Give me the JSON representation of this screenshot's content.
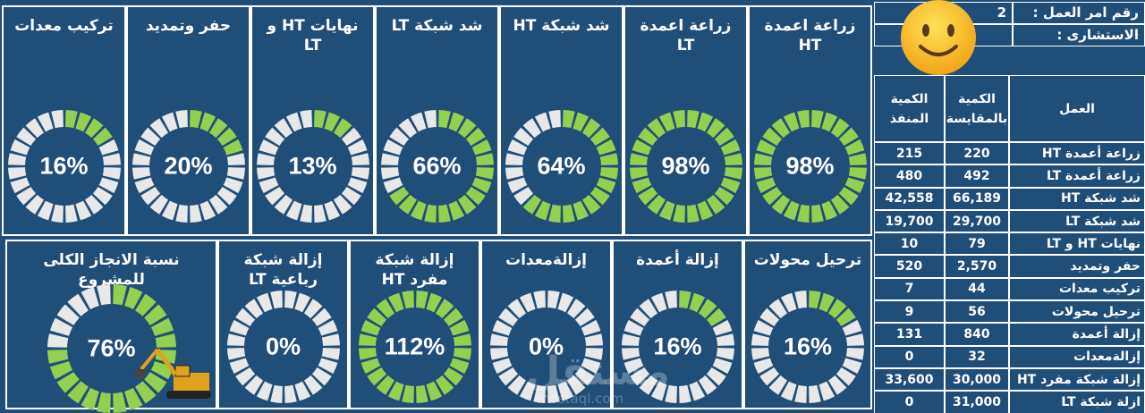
{
  "dashboard": {
    "top_tiles": [
      {
        "title": "زراعة اعمدة HT",
        "percent": 98,
        "pct_label": "98%"
      },
      {
        "title": "زراعة اعمدة LT",
        "percent": 98,
        "pct_label": "98%"
      },
      {
        "title": "شد شبكة HT",
        "percent": 64,
        "pct_label": "64%"
      },
      {
        "title": "شد شبكة LT",
        "percent": 66,
        "pct_label": "66%"
      },
      {
        "title": "نهايات HT و LT",
        "percent": 13,
        "pct_label": "13%"
      },
      {
        "title": "حفر وتمديد",
        "percent": 20,
        "pct_label": "20%"
      },
      {
        "title": "تركيب معدات",
        "percent": 16,
        "pct_label": "16%"
      }
    ],
    "bottom_tiles": [
      {
        "title": "ترحيل محولات",
        "percent": 16,
        "pct_label": "16%"
      },
      {
        "title": "إزالة أعمدة",
        "percent": 16,
        "pct_label": "16%"
      },
      {
        "title": "إزالةمعدات",
        "percent": 0,
        "pct_label": "0%"
      },
      {
        "title": "إزالة شبكة مفرد HT",
        "percent": 100,
        "pct_label": "112%"
      },
      {
        "title": "إزالة شبكة رباعية LT",
        "percent": 0,
        "pct_label": "0%"
      },
      {
        "title": "نسبة الانجاز الكلى للمشروع",
        "percent": 76,
        "pct_label": "76%"
      }
    ],
    "colors": {
      "navy": "#1f4e79",
      "done": "#92d050",
      "remaining": "#e8e8e8",
      "border": "#ffffff"
    },
    "decoration": {
      "overall_icon": "excavator-icon",
      "header_icon": "smiley-icon"
    },
    "watermark": {
      "main": "مستقل",
      "sub": "mostaql.com"
    }
  },
  "header": {
    "work_order_label": "رقم امر العمل :",
    "work_order_value": "2",
    "consultant_label": "الاستشارى :"
  },
  "table": {
    "columns": [
      "العمل",
      "الكمية بالمقايسة",
      "الكمية المنفذ"
    ],
    "rows": [
      {
        "work": "زراعة أعمدة HT",
        "planned": "220",
        "done": "215"
      },
      {
        "work": "زراعة أعمدة LT",
        "planned": "492",
        "done": "480"
      },
      {
        "work": "شد شبكة HT",
        "planned": "66,189",
        "done": "42,558"
      },
      {
        "work": "شد شبكة LT",
        "planned": "29,700",
        "done": "19,700"
      },
      {
        "work": "نهايات HT و LT",
        "planned": "79",
        "done": "10"
      },
      {
        "work": "حفر وتمديد",
        "planned": "2,570",
        "done": "520"
      },
      {
        "work": "تركيب معدات",
        "planned": "44",
        "done": "7"
      },
      {
        "work": "ترحيل محولات",
        "planned": "56",
        "done": "9"
      },
      {
        "work": "إزالة أعمدة",
        "planned": "840",
        "done": "131"
      },
      {
        "work": "إزالةمعدات",
        "planned": "32",
        "done": "0"
      },
      {
        "work": "إزالة شبكة مفرد HT",
        "planned": "30,000",
        "done": "33,600"
      },
      {
        "work": "ازلة شبكة LT",
        "planned": "31,000",
        "done": "0"
      }
    ]
  }
}
